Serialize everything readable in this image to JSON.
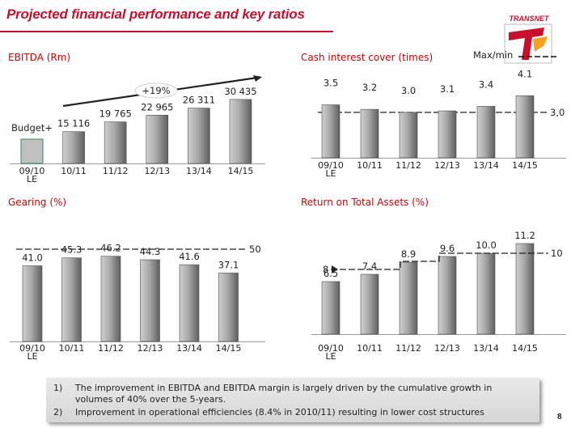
{
  "title": "Projected financial performance and key ratios",
  "logo_text": "TRANSNET",
  "page_number": "8",
  "legend": {
    "max_min_label": "Max/min"
  },
  "notes": [
    {
      "number": "1)",
      "text": "The improvement in EBITDA and EBITDA margin is largely driven by the cumulative growth in volumes of 40%  over the 5-years."
    },
    {
      "number": "2)",
      "text": "Improvement in operational efficiencies (8.4% in 2010/11) resulting in lower cost structures"
    }
  ],
  "colors": {
    "title": "#c8102e",
    "panel_title": "#d00000",
    "bar_light": "#bcbcbc",
    "bar_dark": "#6d6d6d",
    "budget_bar": "#c0c0c0",
    "budget_edge": "#2e8b57"
  },
  "chart_data": [
    {
      "type": "bar",
      "title": "EBITDA (Rm)",
      "categories": [
        "09/10 LE",
        "10/11",
        "11/12",
        "12/13",
        "13/14",
        "14/15"
      ],
      "tick_labels": [
        [
          "09/10",
          "LE"
        ],
        [
          "10/11"
        ],
        [
          "11/12"
        ],
        [
          "12/13"
        ],
        [
          "13/14"
        ],
        [
          "14/15"
        ]
      ],
      "values": [
        null,
        15116,
        19765,
        22965,
        26311,
        30435
      ],
      "value_labels": [
        "",
        "15 116",
        "19 765",
        "22 965",
        "26 311",
        "30 435"
      ],
      "budget": {
        "label": "Budget+",
        "category": "09/10 LE"
      },
      "growth_annotation": "+19%",
      "grid": false
    },
    {
      "type": "bar",
      "title": "Cash interest cover (times)",
      "categories": [
        "09/10 LE",
        "10/11",
        "11/12",
        "12/13",
        "13/14",
        "14/15"
      ],
      "tick_labels": [
        [
          "09/10",
          "LE"
        ],
        [
          "10/11"
        ],
        [
          "11/12"
        ],
        [
          "12/13"
        ],
        [
          "13/14"
        ],
        [
          "14/15"
        ]
      ],
      "values": [
        3.5,
        3.2,
        3.0,
        3.1,
        3.4,
        4.1
      ],
      "value_labels": [
        "3.5",
        "3.2",
        "3.0",
        "3.1",
        "3.4",
        "4.1"
      ],
      "threshold": {
        "value": 3.0,
        "label": "3,0",
        "kind": "min"
      },
      "grid": false
    },
    {
      "type": "bar",
      "title": "Gearing (%)",
      "categories": [
        "09/10 LE",
        "10/11",
        "11/12",
        "12/13",
        "13/14",
        "14/15"
      ],
      "tick_labels": [
        [
          "09/10",
          "LE"
        ],
        [
          "10/11"
        ],
        [
          "11/12"
        ],
        [
          "12/13"
        ],
        [
          "13/14"
        ],
        [
          "14/15"
        ]
      ],
      "values": [
        41.0,
        45.3,
        46.2,
        44.3,
        41.6,
        37.1
      ],
      "value_labels": [
        "41.0",
        "45.3",
        "46.2",
        "44.3",
        "41.6",
        "37.1"
      ],
      "threshold": {
        "value": 50,
        "label": "50",
        "kind": "max"
      },
      "grid": false
    },
    {
      "type": "bar",
      "title": "Return on Total Assets (%)",
      "categories": [
        "09/10 LE",
        "10/11",
        "11/12",
        "12/13",
        "13/14",
        "14/15"
      ],
      "tick_labels": [
        [
          "09/10",
          "LE"
        ],
        [
          "10/11"
        ],
        [
          "11/12"
        ],
        [
          "12/13"
        ],
        [
          "13/14"
        ],
        [
          "14/15"
        ]
      ],
      "values": [
        6.5,
        7.4,
        8.9,
        9.6,
        10.0,
        11.2
      ],
      "value_labels": [
        "6.5",
        "7.4",
        "8.9",
        "9.6",
        "10.0",
        "11.2"
      ],
      "threshold_line": {
        "points": [
          8,
          8,
          9,
          10,
          10,
          10
        ],
        "start_label": "8",
        "end_label": "10"
      },
      "grid": false
    }
  ]
}
